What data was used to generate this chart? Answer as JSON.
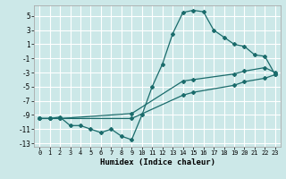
{
  "xlabel": "Humidex (Indice chaleur)",
  "xlim": [
    -0.5,
    23.5
  ],
  "ylim": [
    -13.5,
    6.5
  ],
  "yticks": [
    5,
    3,
    1,
    -1,
    -3,
    -5,
    -7,
    -9,
    -11,
    -13
  ],
  "xticks": [
    0,
    1,
    2,
    3,
    4,
    5,
    6,
    7,
    8,
    9,
    10,
    11,
    12,
    13,
    14,
    15,
    16,
    17,
    18,
    19,
    20,
    21,
    22,
    23
  ],
  "bg_color": "#cce8e8",
  "grid_color": "#ffffff",
  "line_color": "#1a6b6b",
  "line1_x": [
    0,
    1,
    2,
    3,
    4,
    5,
    6,
    7,
    8,
    9,
    10,
    11,
    12,
    13,
    14,
    15,
    16,
    17,
    18,
    19,
    20,
    21,
    22,
    23
  ],
  "line1_y": [
    -9.5,
    -9.5,
    -9.3,
    -10.5,
    -10.5,
    -11.0,
    -11.5,
    -11.0,
    -12.0,
    -12.5,
    -9.0,
    -5.0,
    -1.8,
    2.5,
    5.5,
    5.8,
    5.6,
    3.0,
    2.0,
    1.0,
    0.7,
    -0.5,
    -0.7,
    -3.3
  ],
  "line2_x": [
    0,
    1,
    2,
    9,
    14,
    15,
    19,
    20,
    22,
    23
  ],
  "line2_y": [
    -9.5,
    -9.5,
    -9.5,
    -8.8,
    -4.2,
    -4.0,
    -3.2,
    -2.8,
    -2.3,
    -3.0
  ],
  "line3_x": [
    0,
    1,
    2,
    9,
    14,
    15,
    19,
    20,
    22,
    23
  ],
  "line3_y": [
    -9.5,
    -9.5,
    -9.5,
    -9.5,
    -6.2,
    -5.8,
    -4.8,
    -4.3,
    -3.8,
    -3.3
  ]
}
